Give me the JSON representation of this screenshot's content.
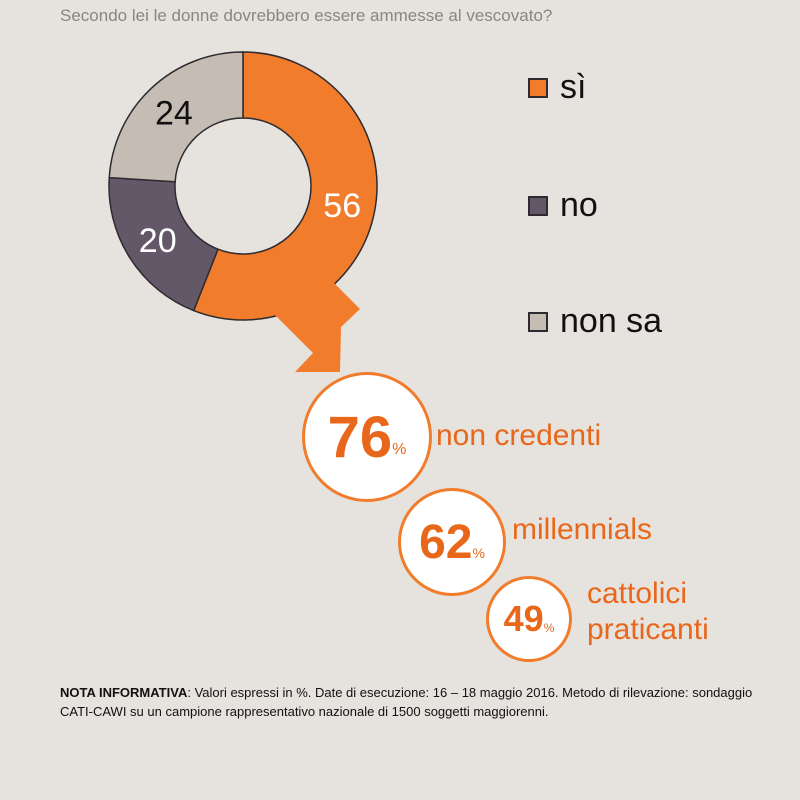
{
  "question": "Secondo lei le donne dovrebbero essere ammesse al vescovato?",
  "chart_data": {
    "type": "pie",
    "labels": [
      "sì",
      "no",
      "non sa"
    ],
    "values": [
      56,
      20,
      24
    ],
    "colors": [
      "#f07c2c",
      "#625868",
      "#c5bcb4"
    ]
  },
  "legend": [
    {
      "label": "sì",
      "color": "#f07c2c"
    },
    {
      "label": "no",
      "color": "#625868"
    },
    {
      "label": "non sa",
      "color": "#c5bcb4"
    }
  ],
  "breakdown": [
    {
      "value": "76",
      "unit": "%",
      "label": "non credenti"
    },
    {
      "value": "62",
      "unit": "%",
      "label": "millennials"
    },
    {
      "value": "49",
      "unit": "%",
      "label_line1": "cattolici",
      "label_line2": "praticanti"
    }
  ],
  "note": {
    "heading": "NOTA INFORMATIVA",
    "text": ": Valori espressi in %. Date di esecuzione: 16 – 18 maggio 2016. Metodo di rilevazione: sondaggio CATI-CAWI su un campione rappresentativo nazionale di 1500 soggetti maggiorenni."
  }
}
